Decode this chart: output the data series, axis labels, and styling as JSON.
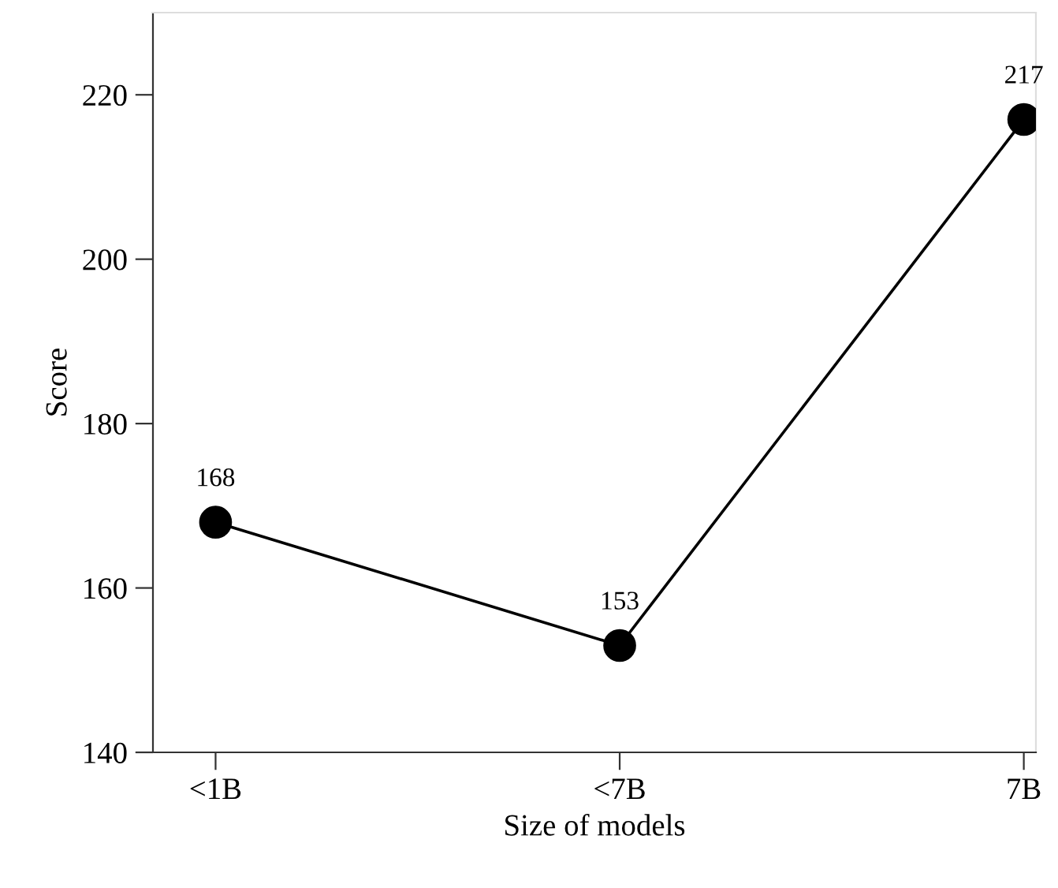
{
  "chart_data": {
    "type": "line",
    "xlabel": "Size of models",
    "ylabel": "Score",
    "categories": [
      "<1B",
      "<7B",
      "7B"
    ],
    "series": [
      {
        "color": "#000000",
        "values": [
          168,
          153,
          217
        ]
      }
    ],
    "ylim": [
      140,
      230
    ],
    "yticks": [
      140,
      160,
      180,
      200,
      220
    ],
    "data_labels": true,
    "marker": "circle",
    "line_style": "solid",
    "grid": false,
    "legend": false
  }
}
